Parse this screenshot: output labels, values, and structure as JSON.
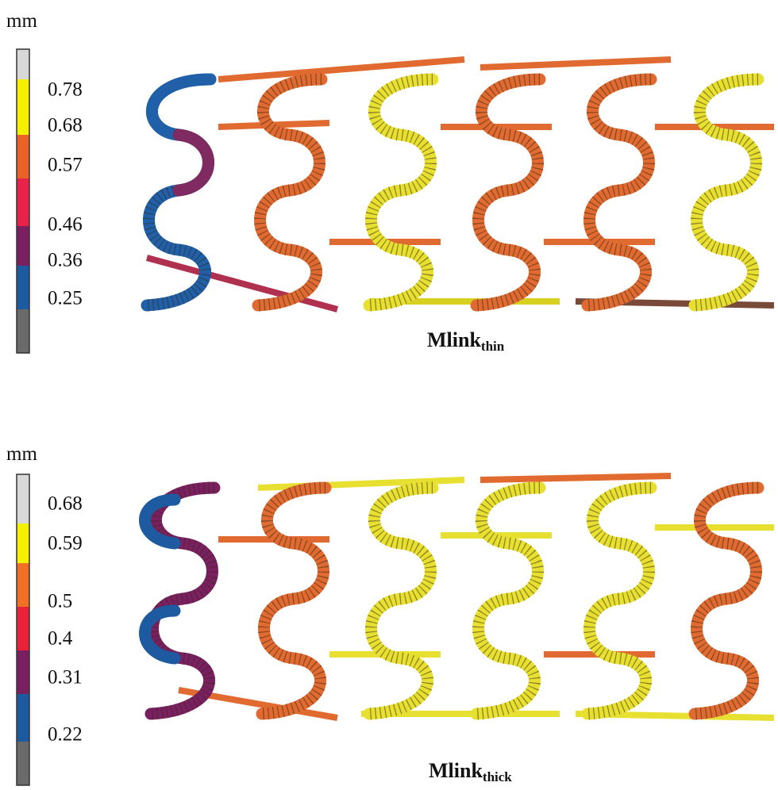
{
  "panels": [
    {
      "unit": "mm",
      "ticks": [
        0.78,
        0.68,
        0.57,
        0.46,
        0.36,
        0.25
      ],
      "caption": "Mlink",
      "caption_sub": "thin"
    },
    {
      "unit": "mm",
      "ticks": [
        0.68,
        0.59,
        0.5,
        0.4,
        0.31,
        0.22
      ],
      "caption": "Mlink",
      "caption_sub": "thick"
    }
  ]
}
